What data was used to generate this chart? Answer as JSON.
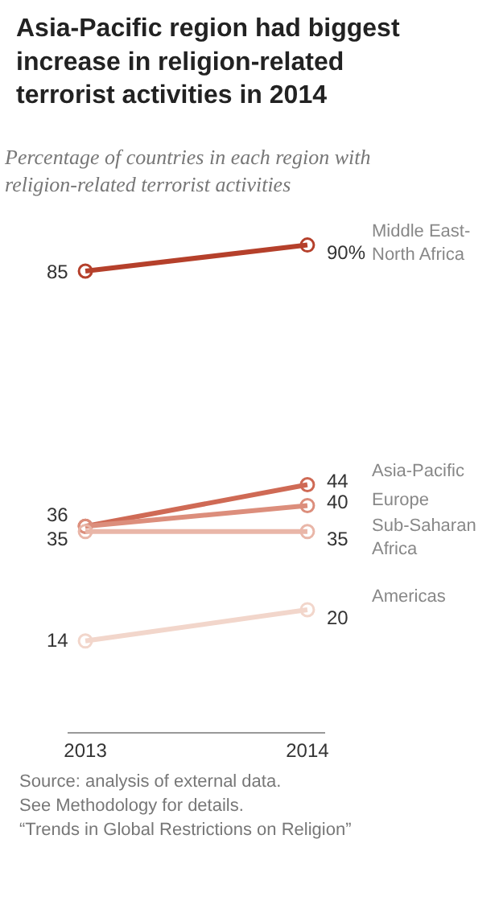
{
  "chart_data": {
    "type": "line",
    "title": "Asia-Pacific region had biggest increase in religion-related terrorist activities in 2014",
    "subtitle": "Percentage of countries in each region with religion-related terrorist activities",
    "categories": [
      "2013",
      "2014"
    ],
    "series": [
      {
        "name": "Middle East-North Africa",
        "color": "#b5402b",
        "values": [
          85,
          90
        ],
        "value_labels": [
          "85",
          "90%"
        ]
      },
      {
        "name": "Asia-Pacific",
        "color": "#cf6a55",
        "values": [
          36,
          44
        ],
        "value_labels": [
          "36",
          "44"
        ]
      },
      {
        "name": "Europe",
        "color": "#dc8e7c",
        "values": [
          36,
          40
        ],
        "value_labels": [
          null,
          "40"
        ]
      },
      {
        "name": "Sub-Saharan Africa",
        "color": "#e9b6a8",
        "values": [
          35,
          35
        ],
        "value_labels": [
          "35",
          "35"
        ]
      },
      {
        "name": "Americas",
        "color": "#f2d6cb",
        "values": [
          14,
          20
        ],
        "value_labels": [
          "14",
          "20"
        ]
      }
    ],
    "annotations": [
      "Source: analysis of external data.",
      "See Methodology for details.",
      "“Trends in Global Restrictions on Religion”"
    ],
    "marker": "circle",
    "legend": false
  }
}
